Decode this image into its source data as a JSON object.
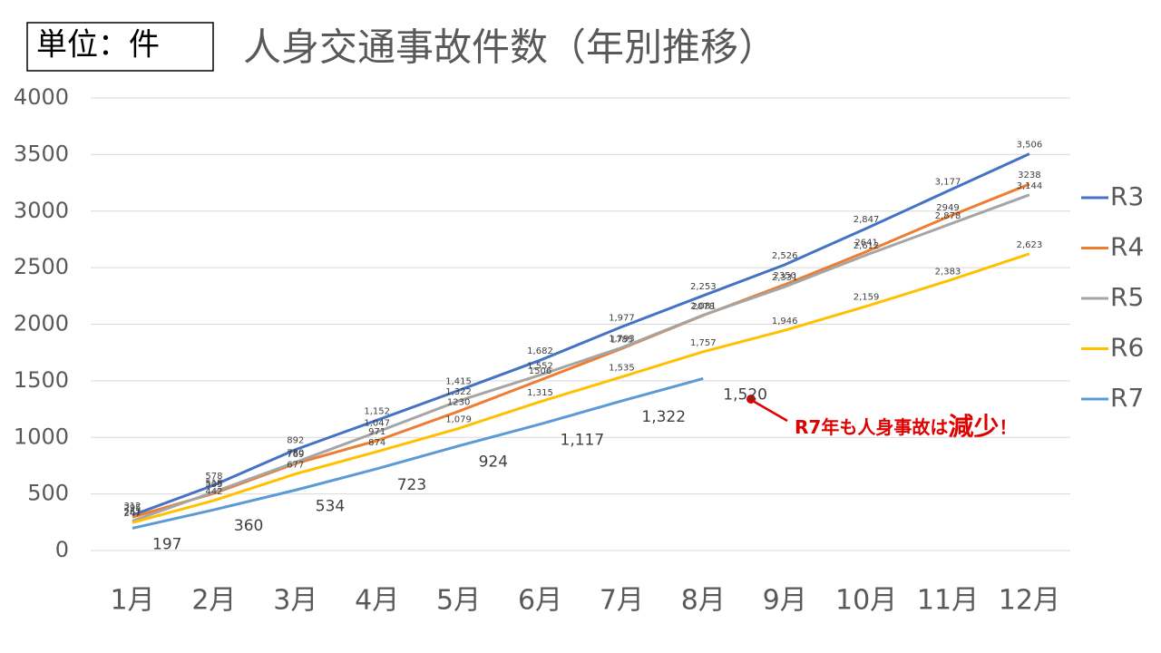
{
  "chart_data": {
    "type": "line",
    "unit_label": "単位：件",
    "title": "人身交通事故件数（年別推移）",
    "categories": [
      "1月",
      "2月",
      "3月",
      "4月",
      "5月",
      "6月",
      "7月",
      "8月",
      "9月",
      "10月",
      "11月",
      "12月"
    ],
    "ylim": [
      0,
      4000
    ],
    "yticks": [
      0,
      500,
      1000,
      1500,
      2000,
      2500,
      3000,
      3500,
      4000
    ],
    "grid": true,
    "legend": "right",
    "series": [
      {
        "name": "R3",
        "color": "#4472c4",
        "values": [
          312,
          578,
          892,
          1152,
          1415,
          1682,
          1977,
          2253,
          2526,
          2847,
          3177,
          3506
        ],
        "value_labels": [
          "312",
          "578",
          "892",
          "1,152",
          "1,415",
          "1,682",
          "1,977",
          "2,253",
          "2,526",
          "2,847",
          "3,177",
          "3,506"
        ]
      },
      {
        "name": "R4",
        "color": "#ed7d31",
        "values": [
          295,
          505,
          769,
          971,
          1230,
          1506,
          1785,
          2078,
          2350,
          2641,
          2949,
          3238
        ],
        "value_labels": [
          "295",
          "505",
          "769",
          "971",
          "1230",
          "1506",
          "1785",
          "2078",
          "2350",
          "2641",
          "2949",
          "3238"
        ]
      },
      {
        "name": "R5",
        "color": "#a5a5a5",
        "values": [
          261,
          518,
          780,
          1047,
          1322,
          1552,
          1793,
          2081,
          2331,
          2612,
          2878,
          3144
        ],
        "value_labels": [
          "261",
          "518",
          "780",
          "1,047",
          "1,322",
          "1,552",
          "1,793",
          "2,081",
          "2,331",
          "2,612",
          "2,878",
          "3,144"
        ]
      },
      {
        "name": "R6",
        "color": "#ffc000",
        "values": [
          247,
          442,
          677,
          874,
          1079,
          1315,
          1535,
          1757,
          1946,
          2159,
          2383,
          2623
        ],
        "value_labels": [
          "247",
          "442",
          "677",
          "874",
          "1,079",
          "1,315",
          "1,535",
          "1,757",
          "1,946",
          "2,159",
          "2,383",
          "2,623"
        ]
      },
      {
        "name": "R7",
        "color": "#5b9bd5",
        "values": [
          197,
          360,
          534,
          723,
          924,
          1117,
          1322,
          1520,
          null,
          null,
          null,
          null
        ],
        "value_labels": [
          "197",
          "360",
          "534",
          "723",
          "924",
          "1,117",
          "1,322",
          "1,520",
          null,
          null,
          null,
          null
        ]
      }
    ],
    "annotation": [
      "R7年も人身事故は",
      "減少",
      "！"
    ]
  }
}
